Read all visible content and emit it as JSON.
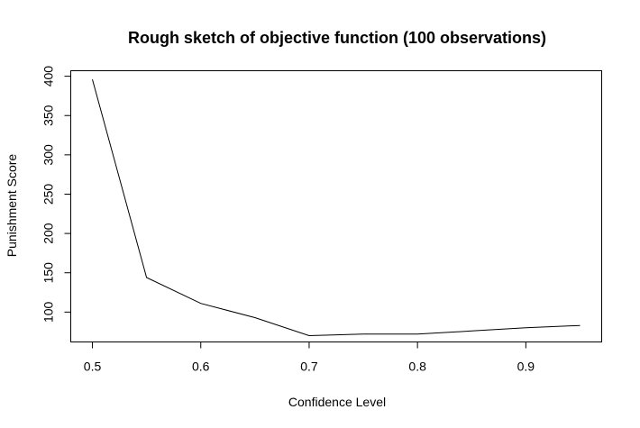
{
  "chart_data": {
    "type": "line",
    "title": "Rough sketch of objective function (100 observations)",
    "xlabel": "Confidence Level",
    "ylabel": "Punishment Score",
    "x": [
      0.5,
      0.55,
      0.6,
      0.65,
      0.7,
      0.75,
      0.8,
      0.85,
      0.9,
      0.95
    ],
    "series": [
      {
        "values": [
          396,
          144,
          111,
          93,
          70,
          72,
          72,
          76,
          80,
          83
        ]
      }
    ],
    "xlim": [
      0.48,
      0.97
    ],
    "ylim": [
      62,
      407
    ],
    "x_ticks": [
      0.5,
      0.6,
      0.7,
      0.8,
      0.9
    ],
    "x_tick_labels": [
      "0.5",
      "0.6",
      "0.7",
      "0.8",
      "0.9"
    ],
    "y_ticks": [
      100,
      150,
      200,
      250,
      300,
      350,
      400
    ],
    "y_tick_labels": [
      "100",
      "150",
      "200",
      "250",
      "300",
      "350",
      "400"
    ],
    "grid": false,
    "legend": "none",
    "colors": {
      "line": "#000000",
      "background": "#ffffff",
      "text": "#000000"
    }
  }
}
